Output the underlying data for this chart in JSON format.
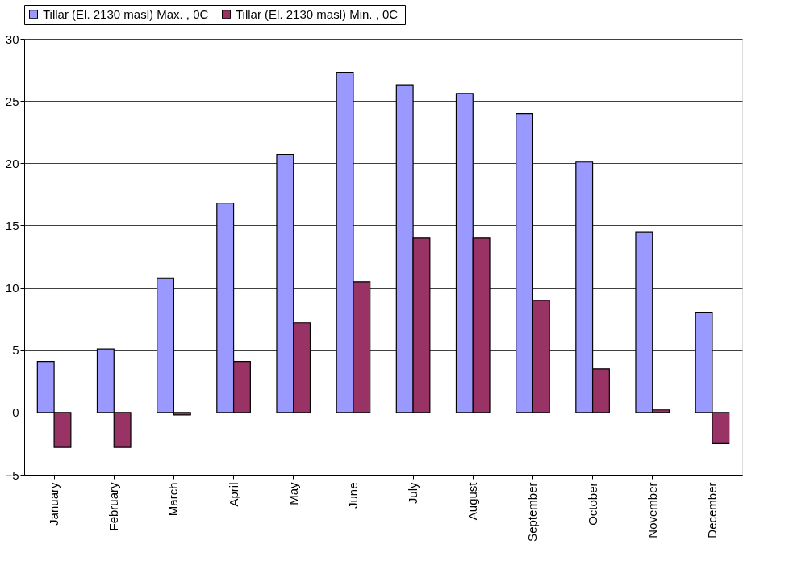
{
  "chart_data": {
    "type": "bar",
    "categories": [
      "January",
      "February",
      "March",
      "April",
      "May",
      "June",
      "July",
      "August",
      "September",
      "October",
      "November",
      "December"
    ],
    "series": [
      {
        "name": "Tillar  (El. 2130 masl) Max. , 0C",
        "color": "#9999ff",
        "values": [
          4.1,
          5.1,
          10.8,
          16.8,
          20.7,
          27.3,
          26.3,
          25.6,
          24.0,
          20.1,
          14.5,
          8.0
        ]
      },
      {
        "name": "Tillar  (El. 2130 masl) Min. , 0C",
        "color": "#993366",
        "values": [
          -2.8,
          -2.8,
          -0.2,
          4.1,
          7.2,
          10.5,
          14.0,
          14.0,
          9.0,
          3.5,
          0.2,
          -2.5
        ]
      }
    ],
    "ylim": [
      -5,
      30
    ],
    "yticks": [
      -5,
      0,
      5,
      10,
      15,
      20,
      25,
      30
    ],
    "grid": "y",
    "legend": "top"
  }
}
